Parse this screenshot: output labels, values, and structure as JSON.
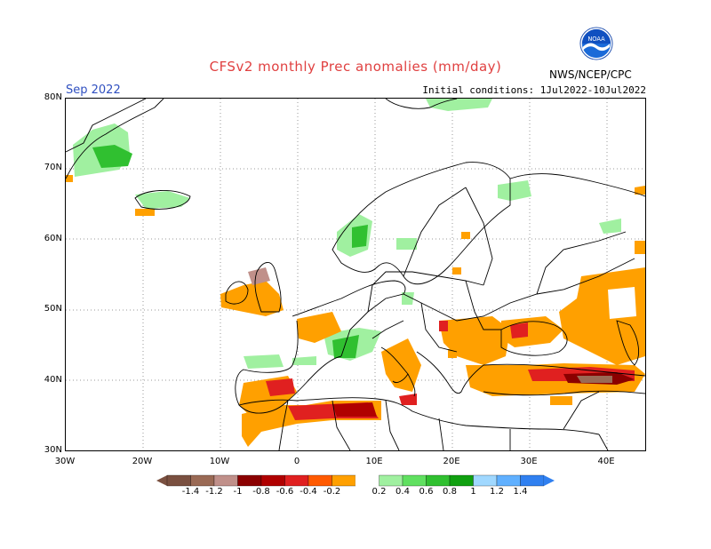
{
  "title": "CFSv2 monthly Prec anomalies (mm/day)",
  "month": "Sep 2022",
  "initial_conditions": "Initial conditions: 1Jul2022-10Jul2022",
  "agency": "NWS/NCEP/CPC",
  "logo_text": "NOAA",
  "lat_labels": [
    "80N",
    "70N",
    "60N",
    "50N",
    "40N",
    "30N"
  ],
  "lon_labels": [
    "30W",
    "20W",
    "10W",
    "0",
    "10E",
    "20E",
    "30E",
    "40E"
  ],
  "colorbar": {
    "labels": [
      "-1.4",
      "-1.2",
      "-1",
      "-0.8",
      "-0.6",
      "-0.4",
      "-0.2",
      "0.2",
      "0.4",
      "0.6",
      "0.8",
      "1",
      "1.2",
      "1.4"
    ],
    "colors": [
      "#7a5040",
      "#9a6a55",
      "#c0908a",
      "#8b0000",
      "#b00000",
      "#e02020",
      "#ff5a00",
      "#ffa000",
      "#ffffff",
      "#a0f0a0",
      "#60e060",
      "#30c030",
      "#10a010",
      "#a0d8ff",
      "#60b0ff",
      "#3080f0"
    ]
  },
  "colors": {
    "title": "#e04040",
    "month": "#3050c0",
    "frame": "#000000"
  }
}
